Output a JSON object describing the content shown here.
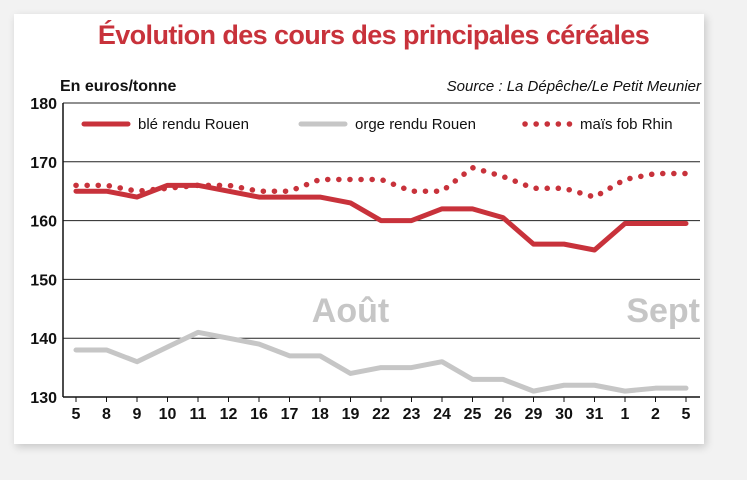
{
  "chart_data": {
    "type": "line",
    "title": "Évolution des cours des principales céréales",
    "ylabel": "En euros/tonne",
    "source": "Source : La Dépêche/Le Petit Meunier",
    "ylim": [
      130,
      180
    ],
    "yticks": [
      130,
      140,
      150,
      160,
      170,
      180
    ],
    "grid": true,
    "legend_position": "top",
    "categories": [
      "5",
      "8",
      "9",
      "10",
      "11",
      "12",
      "16",
      "17",
      "18",
      "19",
      "22",
      "23",
      "24",
      "25",
      "26",
      "29",
      "30",
      "31",
      "1",
      "2",
      "5"
    ],
    "month_labels": [
      {
        "text": "Août",
        "anchor_category_index": 9
      },
      {
        "text": "Sept",
        "anchor_category_index": 19
      }
    ],
    "series": [
      {
        "name": "blé rendu Rouen",
        "color": "#c8323b",
        "style": "solid",
        "values": [
          165,
          165,
          164,
          166,
          166,
          165,
          164,
          164,
          164,
          163,
          160,
          160,
          162,
          162,
          160.5,
          156,
          156,
          155,
          159.5,
          159.5,
          159.5
        ]
      },
      {
        "name": "orge rendu Rouen",
        "color": "#c6c6c6",
        "style": "solid",
        "values": [
          138,
          138,
          136,
          138.5,
          141,
          140,
          139,
          137,
          137,
          134,
          135,
          135,
          136,
          133,
          133,
          131,
          132,
          132,
          131,
          131.5,
          131.5
        ]
      },
      {
        "name": "maïs fob Rhin",
        "color": "#c8323b",
        "style": "dotted",
        "values": [
          166,
          166,
          165,
          165.5,
          166,
          166,
          165,
          165,
          167,
          167,
          167,
          165,
          165,
          169,
          167.5,
          165.5,
          165.5,
          164,
          167,
          168,
          168
        ]
      }
    ]
  }
}
